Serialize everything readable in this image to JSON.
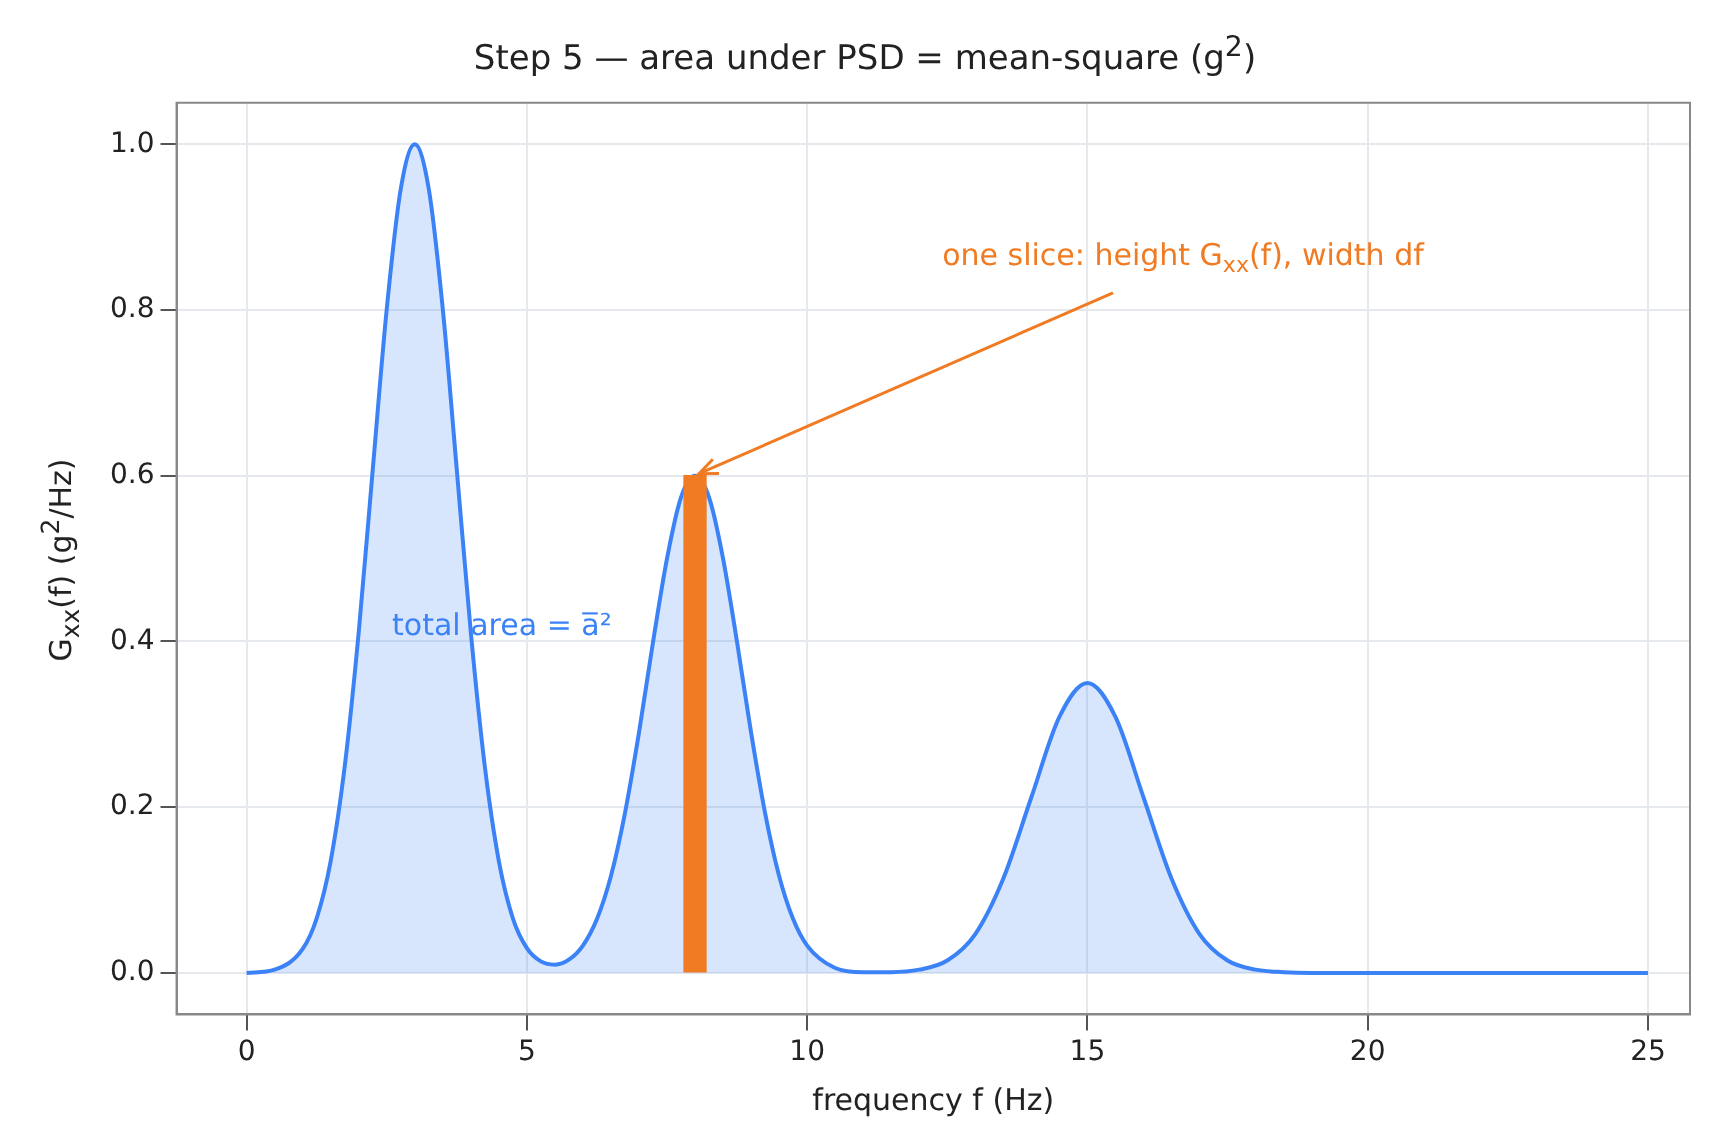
{
  "chart_data": {
    "type": "area",
    "title": "Step 5 — area under PSD = mean-square (g$^{2}$)",
    "xlabel": "frequency f (Hz)",
    "ylabel": "G$_{xx}$(f) (g$^{2}$/Hz)",
    "series": [
      {
        "color": "#3b82f6",
        "x": [
          0,
          0.5,
          1,
          1.25,
          1.5,
          1.75,
          2,
          2.25,
          2.5,
          2.75,
          3,
          3.25,
          3.5,
          3.75,
          4,
          4.25,
          4.5,
          4.75,
          5,
          5.25,
          5.5,
          5.75,
          6,
          6.25,
          6.5,
          6.75,
          7,
          7.25,
          7.5,
          7.75,
          8,
          8.25,
          8.5,
          8.75,
          9,
          9.25,
          9.5,
          9.75,
          10,
          10.5,
          11,
          11.5,
          12,
          12.5,
          13,
          13.5,
          14,
          14.5,
          15,
          15.5,
          16,
          16.5,
          17,
          17.5,
          18,
          18.5,
          19,
          20,
          25
        ],
        "values": [
          0,
          0.004,
          0.029,
          0.066,
          0.135,
          0.249,
          0.411,
          0.607,
          0.801,
          0.946,
          1,
          0.946,
          0.801,
          0.607,
          0.411,
          0.249,
          0.135,
          0.066,
          0.03,
          0.014,
          0.01,
          0.016,
          0.033,
          0.065,
          0.117,
          0.193,
          0.29,
          0.399,
          0.5,
          0.574,
          0.6,
          0.574,
          0.5,
          0.399,
          0.29,
          0.193,
          0.117,
          0.065,
          0.033,
          0.006,
          0.001,
          0.001,
          0.004,
          0.015,
          0.047,
          0.114,
          0.212,
          0.309,
          0.35,
          0.309,
          0.212,
          0.114,
          0.047,
          0.015,
          0.004,
          0.001,
          0,
          0,
          0
        ]
      },
      {
        "type": "bar",
        "color": "#f07b22",
        "x": [
          8
        ],
        "values": [
          0.6
        ]
      }
    ],
    "xlim": [
      -1.25,
      25.75
    ],
    "xticks": [
      0,
      5,
      10,
      15,
      20,
      25
    ],
    "ylim": [
      -0.05,
      1.05
    ],
    "yticks": [
      {
        "value": 0,
        "label": "0.0"
      },
      0.2,
      0.4,
      0.6,
      0.8,
      {
        "value": 1,
        "label": "1.0"
      }
    ],
    "grid": true,
    "annotations": [
      {
        "text": "one slice: height G$_{xx}$(f), width df",
        "x": 8,
        "y": 0.6
      },
      "total area = a̅²"
    ]
  }
}
